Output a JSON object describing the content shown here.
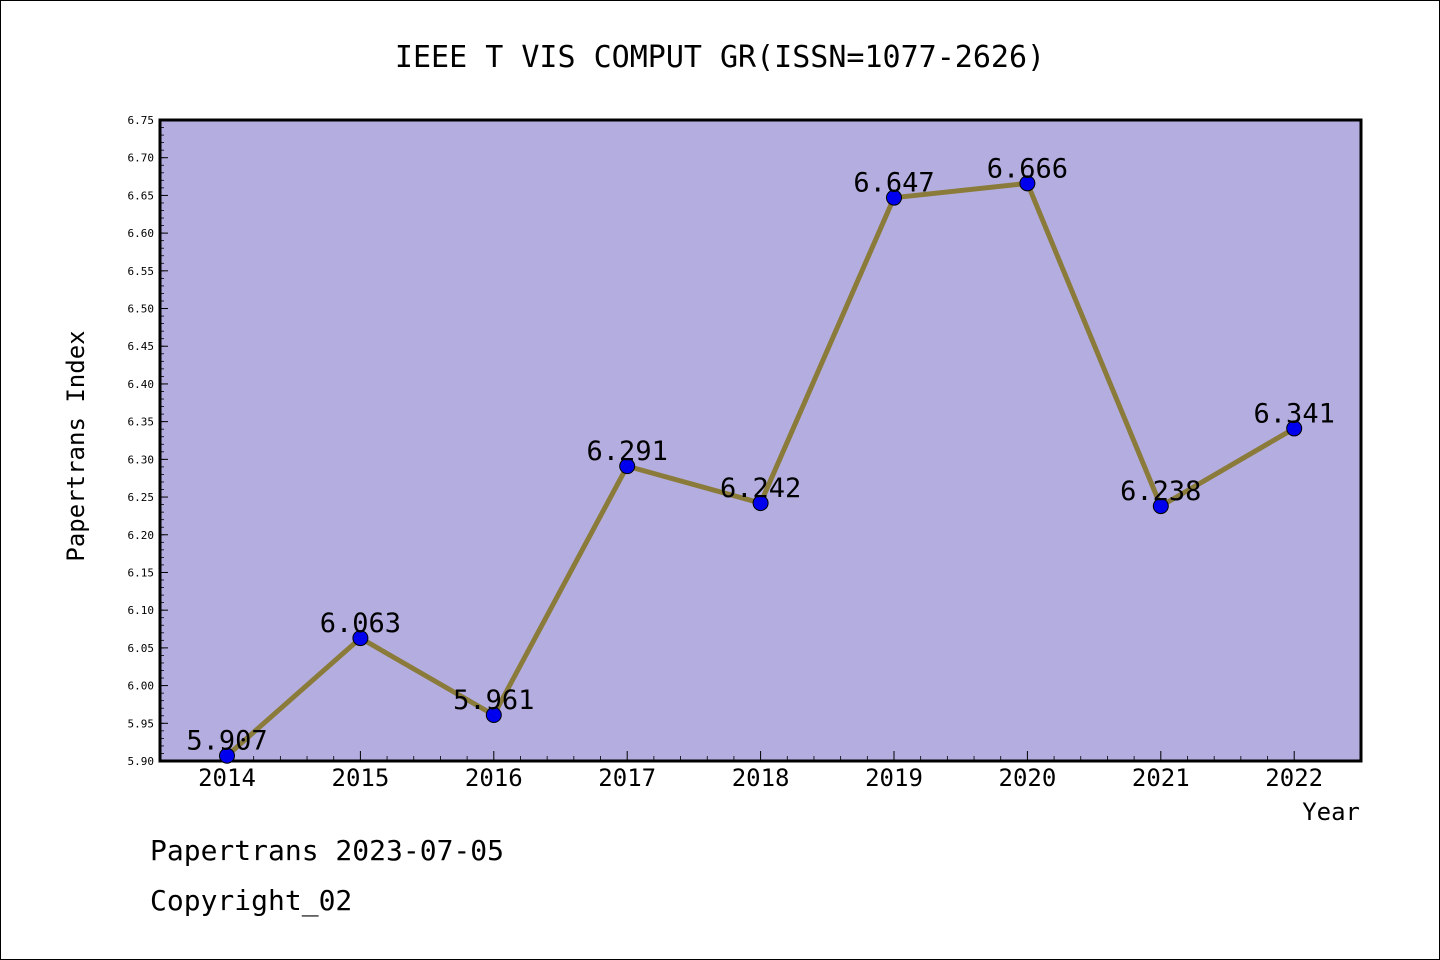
{
  "chart_data": {
    "type": "line",
    "title": "IEEE T VIS COMPUT GR(ISSN=1077-2626)",
    "xlabel": "Year",
    "ylabel": "Papertrans Index",
    "categories": [
      "2014",
      "2015",
      "2016",
      "2017",
      "2018",
      "2019",
      "2020",
      "2021",
      "2022"
    ],
    "series": [
      {
        "values": [
          5.907,
          6.063,
          5.961,
          6.291,
          6.242,
          6.647,
          6.666,
          6.238,
          6.341
        ],
        "labels": [
          "5.907",
          "6.063",
          "5.961",
          "6.291",
          "6.242",
          "6.647",
          "6.666",
          "6.238",
          "6.341"
        ]
      }
    ],
    "ylim": [
      5.9,
      6.75
    ],
    "yticks": [
      "5.90",
      "5.95",
      "6.00",
      "6.05",
      "6.10",
      "6.15",
      "6.20",
      "6.25",
      "6.30",
      "6.35",
      "6.40",
      "6.45",
      "6.50",
      "6.55",
      "6.60",
      "6.65",
      "6.70",
      "6.75"
    ],
    "grid": false,
    "colors": {
      "plot_background": "#b4aee0",
      "line": "#8b7b3a",
      "marker": "#0000ee"
    }
  },
  "footer": {
    "date_text": "Papertrans 2023-07-05",
    "copyright_text": "Copyright_02"
  }
}
